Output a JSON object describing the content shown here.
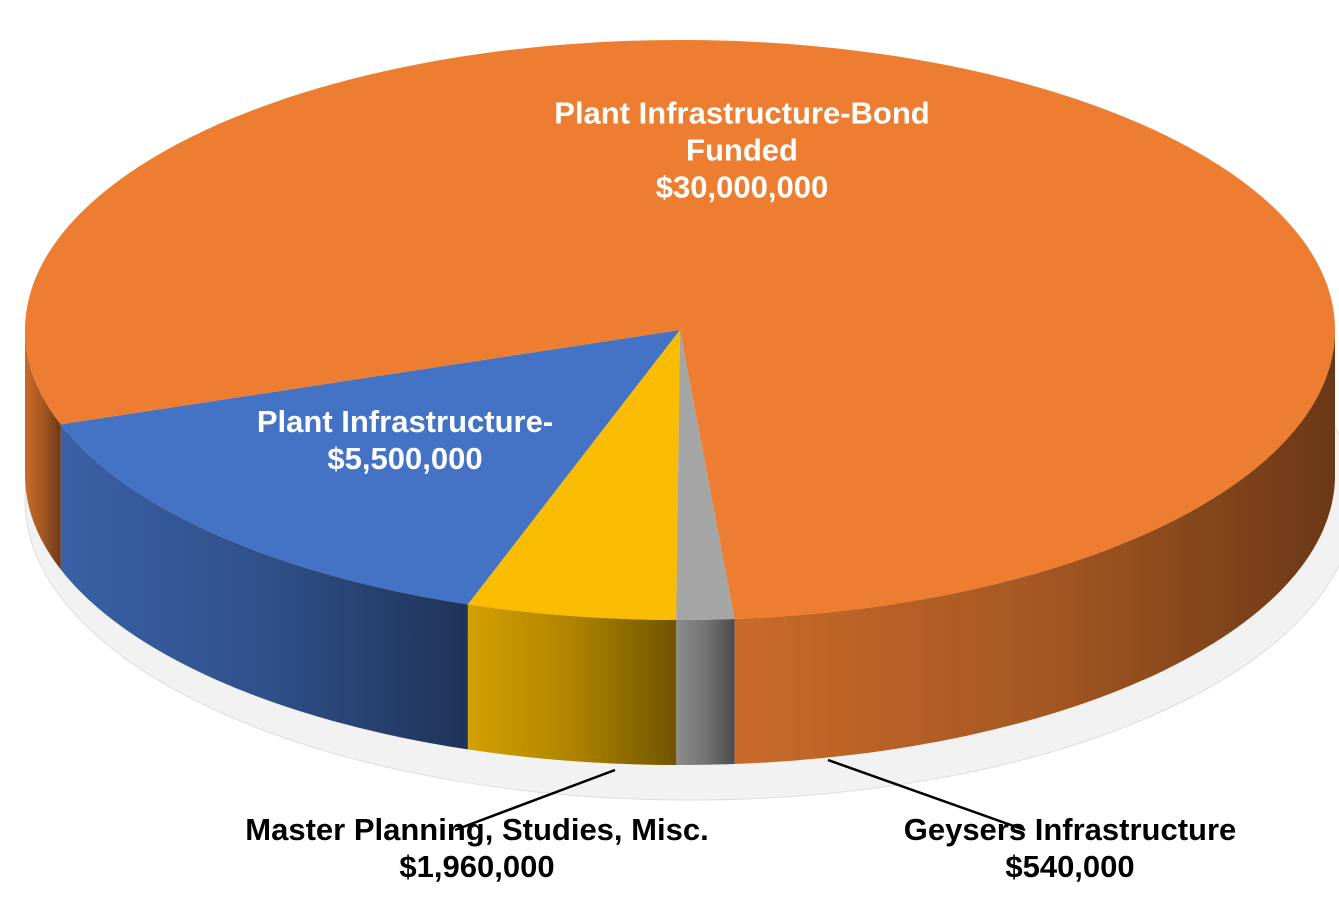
{
  "chart_data": {
    "type": "pie",
    "categories": [
      "Plant Infrastructure-",
      "Master Planning, Studies, Misc.",
      "Geysers Infrastructure",
      "Plant Infrastructure-Bond Funded"
    ],
    "values": [
      5500000,
      1960000,
      540000,
      30000000
    ],
    "value_labels": [
      "$5,500,000",
      "$1,960,000",
      "$540,000",
      "$30,000,000"
    ],
    "colors": [
      "#4472C4",
      "#F9BC00",
      "#A5A5A5",
      "#ED7D31"
    ]
  }
}
